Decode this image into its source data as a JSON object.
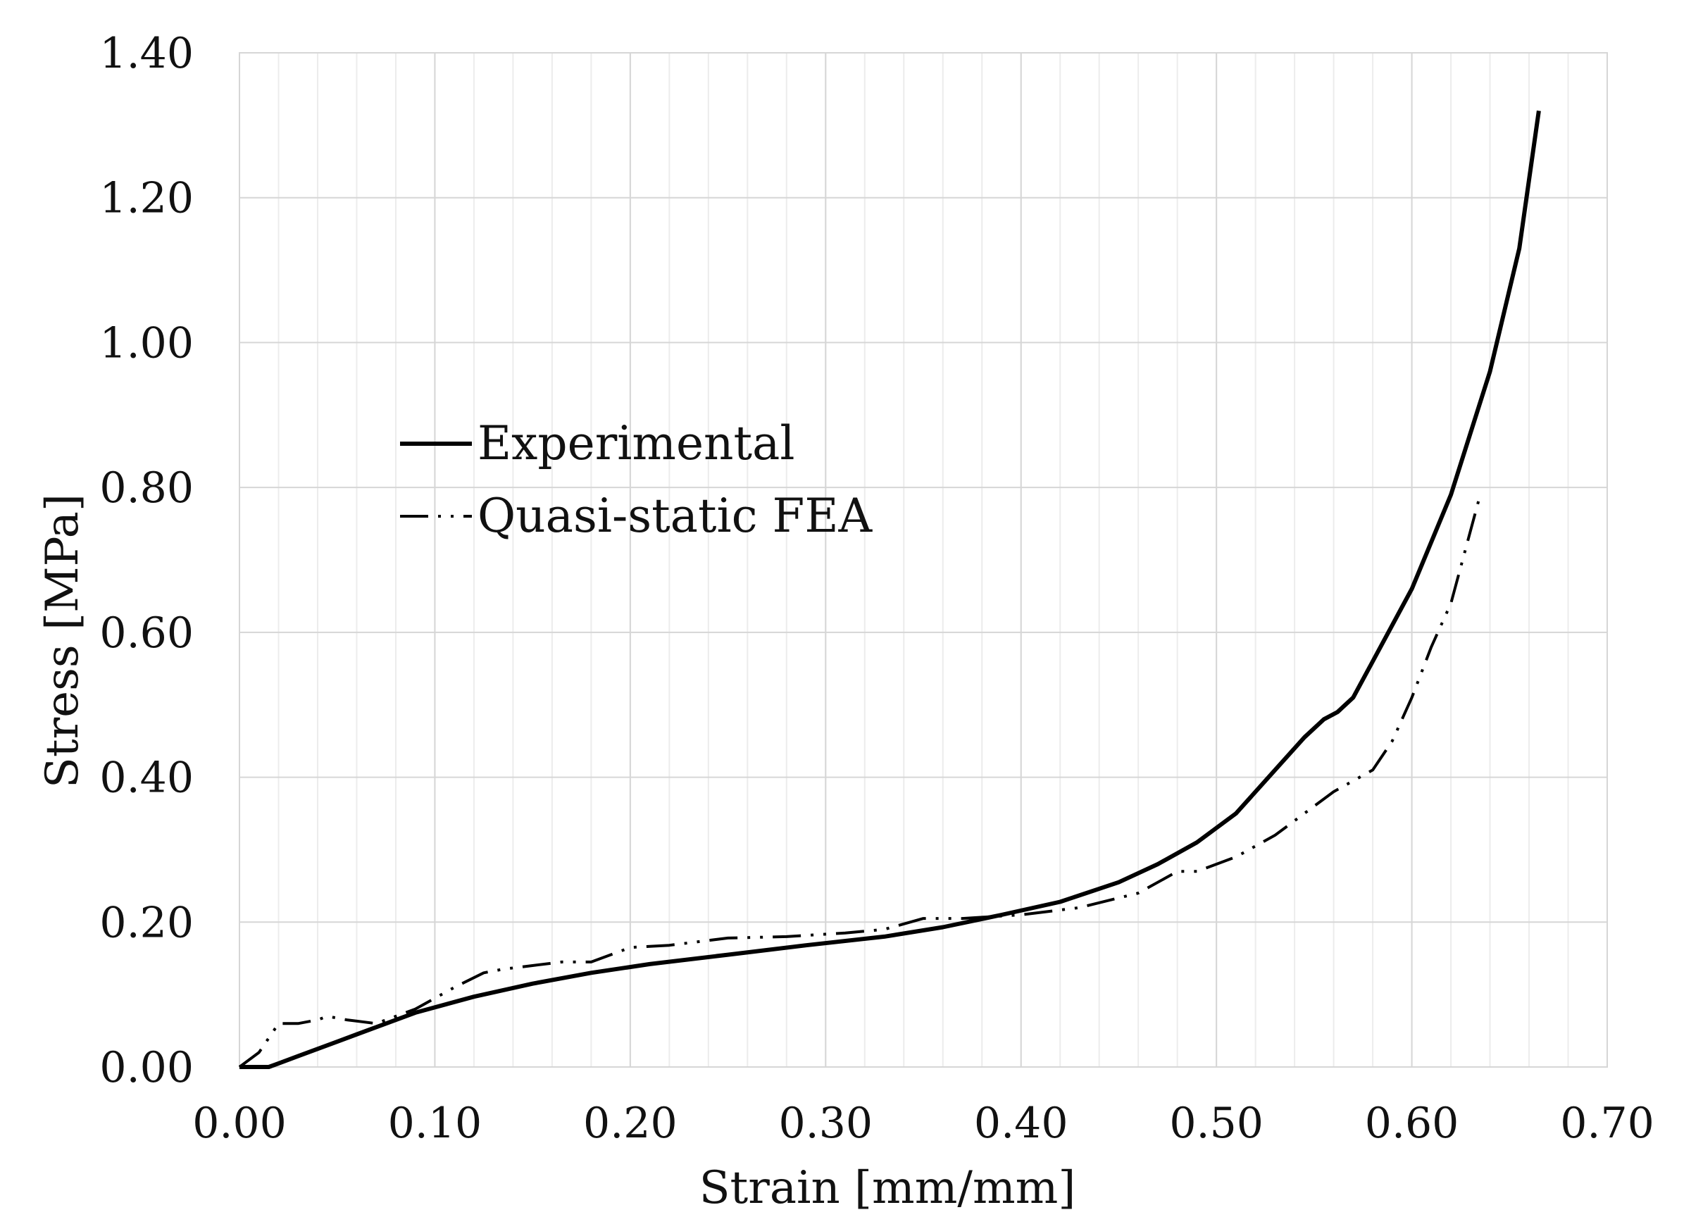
{
  "chart_data": {
    "type": "line",
    "xlabel": "Strain [mm/mm]",
    "ylabel": "Stress [MPa]",
    "xlim": [
      0.0,
      0.7
    ],
    "ylim": [
      0.0,
      1.4
    ],
    "x_major_step": 0.1,
    "x_minor_step": 0.02,
    "y_major_step": 0.2,
    "x_tick_labels": [
      "0.00",
      "0.10",
      "0.20",
      "0.30",
      "0.40",
      "0.50",
      "0.60",
      "0.70"
    ],
    "y_tick_labels": [
      "0.00",
      "0.20",
      "0.40",
      "0.60",
      "0.80",
      "1.00",
      "1.20",
      "1.40"
    ],
    "grid": true,
    "legend_position": "center-left",
    "series": [
      {
        "name": "Experimental",
        "style": "solid",
        "color": "#000000",
        "x": [
          0.0,
          0.01,
          0.015,
          0.02,
          0.03,
          0.05,
          0.07,
          0.09,
          0.12,
          0.15,
          0.18,
          0.21,
          0.25,
          0.29,
          0.33,
          0.36,
          0.39,
          0.42,
          0.45,
          0.47,
          0.49,
          0.51,
          0.53,
          0.545,
          0.555,
          0.562,
          0.57,
          0.58,
          0.6,
          0.62,
          0.64,
          0.655,
          0.665
        ],
        "y": [
          0.0,
          0.0,
          0.0,
          0.005,
          0.015,
          0.035,
          0.055,
          0.075,
          0.097,
          0.115,
          0.13,
          0.142,
          0.155,
          0.168,
          0.18,
          0.193,
          0.21,
          0.228,
          0.255,
          0.28,
          0.31,
          0.35,
          0.41,
          0.455,
          0.48,
          0.49,
          0.51,
          0.56,
          0.66,
          0.79,
          0.96,
          1.13,
          1.32
        ]
      },
      {
        "name": "Quasi-static FEA",
        "style": "dash-dot-dot",
        "color": "#000000",
        "x": [
          0.0,
          0.01,
          0.02,
          0.03,
          0.04,
          0.045,
          0.055,
          0.07,
          0.09,
          0.11,
          0.125,
          0.135,
          0.15,
          0.165,
          0.18,
          0.2,
          0.22,
          0.25,
          0.28,
          0.31,
          0.33,
          0.35,
          0.37,
          0.4,
          0.43,
          0.46,
          0.48,
          0.49,
          0.51,
          0.53,
          0.56,
          0.58,
          0.59,
          0.6,
          0.61,
          0.62,
          0.635
        ],
        "y": [
          0.0,
          0.02,
          0.06,
          0.06,
          0.065,
          0.07,
          0.065,
          0.06,
          0.08,
          0.11,
          0.13,
          0.135,
          0.14,
          0.145,
          0.145,
          0.165,
          0.168,
          0.178,
          0.18,
          0.185,
          0.19,
          0.205,
          0.205,
          0.21,
          0.22,
          0.24,
          0.27,
          0.27,
          0.29,
          0.32,
          0.38,
          0.41,
          0.45,
          0.51,
          0.58,
          0.64,
          0.79
        ]
      }
    ]
  }
}
